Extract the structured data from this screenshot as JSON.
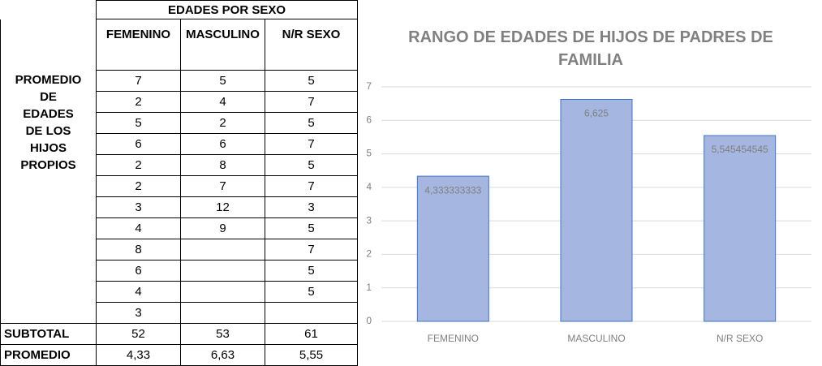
{
  "table": {
    "group_header": "EDADES POR SEXO",
    "columns": [
      "FEMENINO",
      "MASCULINO",
      "N/R SEXO"
    ],
    "row_label": "PROMEDIO DE EDADES DE LOS HIJOS PROPIOS",
    "rows": [
      [
        7,
        5,
        5
      ],
      [
        2,
        4,
        7
      ],
      [
        5,
        2,
        5
      ],
      [
        6,
        6,
        7
      ],
      [
        2,
        8,
        5
      ],
      [
        2,
        7,
        7
      ],
      [
        3,
        12,
        3
      ],
      [
        4,
        9,
        5
      ],
      [
        8,
        null,
        7
      ],
      [
        6,
        null,
        5
      ],
      [
        4,
        null,
        5
      ],
      [
        3,
        null,
        null
      ]
    ],
    "subtotal_label": "SUBTOTAL",
    "subtotal": [
      52,
      53,
      61
    ],
    "average_label": "PROMEDIO",
    "average": [
      "4,33",
      "6,63",
      "5,55"
    ]
  },
  "chart_data": {
    "type": "bar",
    "title": "RANGO DE EDADES DE HIJOS DE PADRES DE FAMILIA",
    "categories": [
      "FEMENINO",
      "MASCULINO",
      "N/R SEXO"
    ],
    "values": [
      4.333333333,
      6.625,
      5.545454545
    ],
    "value_labels": [
      "4,333333333",
      "6,625",
      "5,545454545"
    ],
    "color": "#a5b6e0",
    "edge_color": "#4472c4",
    "ylim": [
      0,
      7
    ],
    "yticks": [
      0,
      1,
      2,
      3,
      4,
      5,
      6,
      7
    ],
    "grid": true
  }
}
